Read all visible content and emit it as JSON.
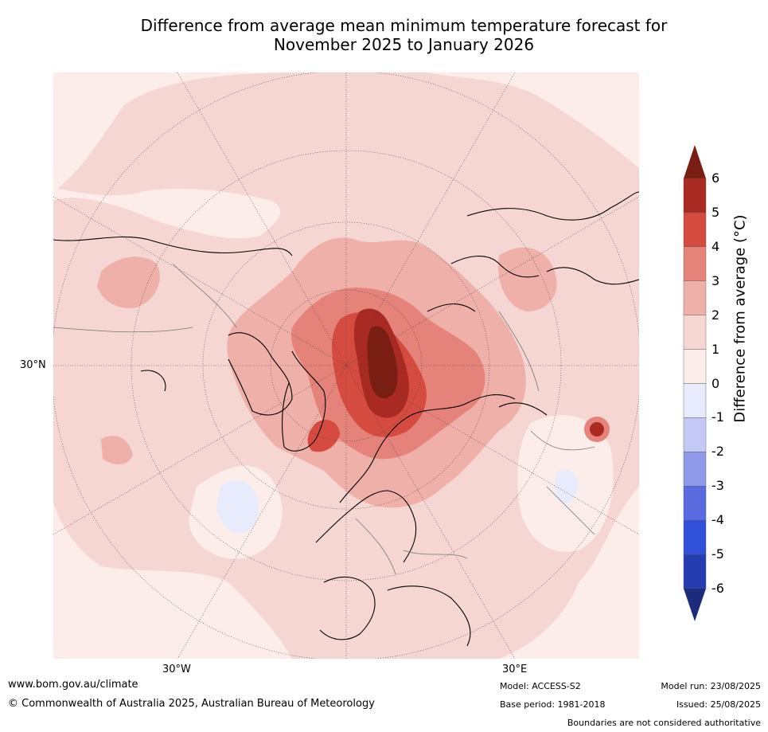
{
  "title_line1": "Difference from average mean minimum temperature forecast for",
  "title_line2": "November 2025 to January 2026",
  "map": {
    "projection": "north-polar-stereographic",
    "lon_labels": [
      "30°W",
      "30°E"
    ],
    "lat_labels": [
      "30°N"
    ]
  },
  "colorbar": {
    "label": "Difference from average (°C)",
    "ticks": [
      "6",
      "5",
      "4",
      "3",
      "2",
      "1",
      "0",
      "-1",
      "-2",
      "-3",
      "-4",
      "-5",
      "-6"
    ],
    "bins": [
      {
        "range": "above 6",
        "color": "#7a1e14"
      },
      {
        "range": "5 to 6",
        "color": "#a82a22"
      },
      {
        "range": "4 to 5",
        "color": "#d64b3f"
      },
      {
        "range": "3 to 4",
        "color": "#e5837b"
      },
      {
        "range": "2 to 3",
        "color": "#efb0aa"
      },
      {
        "range": "1 to 2",
        "color": "#f5d6d2"
      },
      {
        "range": "0 to 1",
        "color": "#fcecea"
      },
      {
        "range": "-1 to 0",
        "color": "#e8ebfb"
      },
      {
        "range": "-2 to -1",
        "color": "#c3c9f4"
      },
      {
        "range": "-3 to -2",
        "color": "#8e99ea"
      },
      {
        "range": "-4 to -3",
        "color": "#5a6be0"
      },
      {
        "range": "-5 to -4",
        "color": "#3050db"
      },
      {
        "range": "-6 to -5",
        "color": "#263db1"
      },
      {
        "range": "below -6",
        "color": "#1d2b7c"
      }
    ]
  },
  "footer": {
    "url": "www.bom.gov.au/climate",
    "copyright": "© Commonwealth of Australia 2025, Australian Bureau of Meteorology",
    "model": "Model: ACCESS-S2",
    "base_period": "Base period: 1981-2018",
    "model_run": "Model run: 23/08/2025",
    "issued": "Issued: 25/08/2025",
    "disclaimer": "Boundaries are not considered authoritative"
  }
}
